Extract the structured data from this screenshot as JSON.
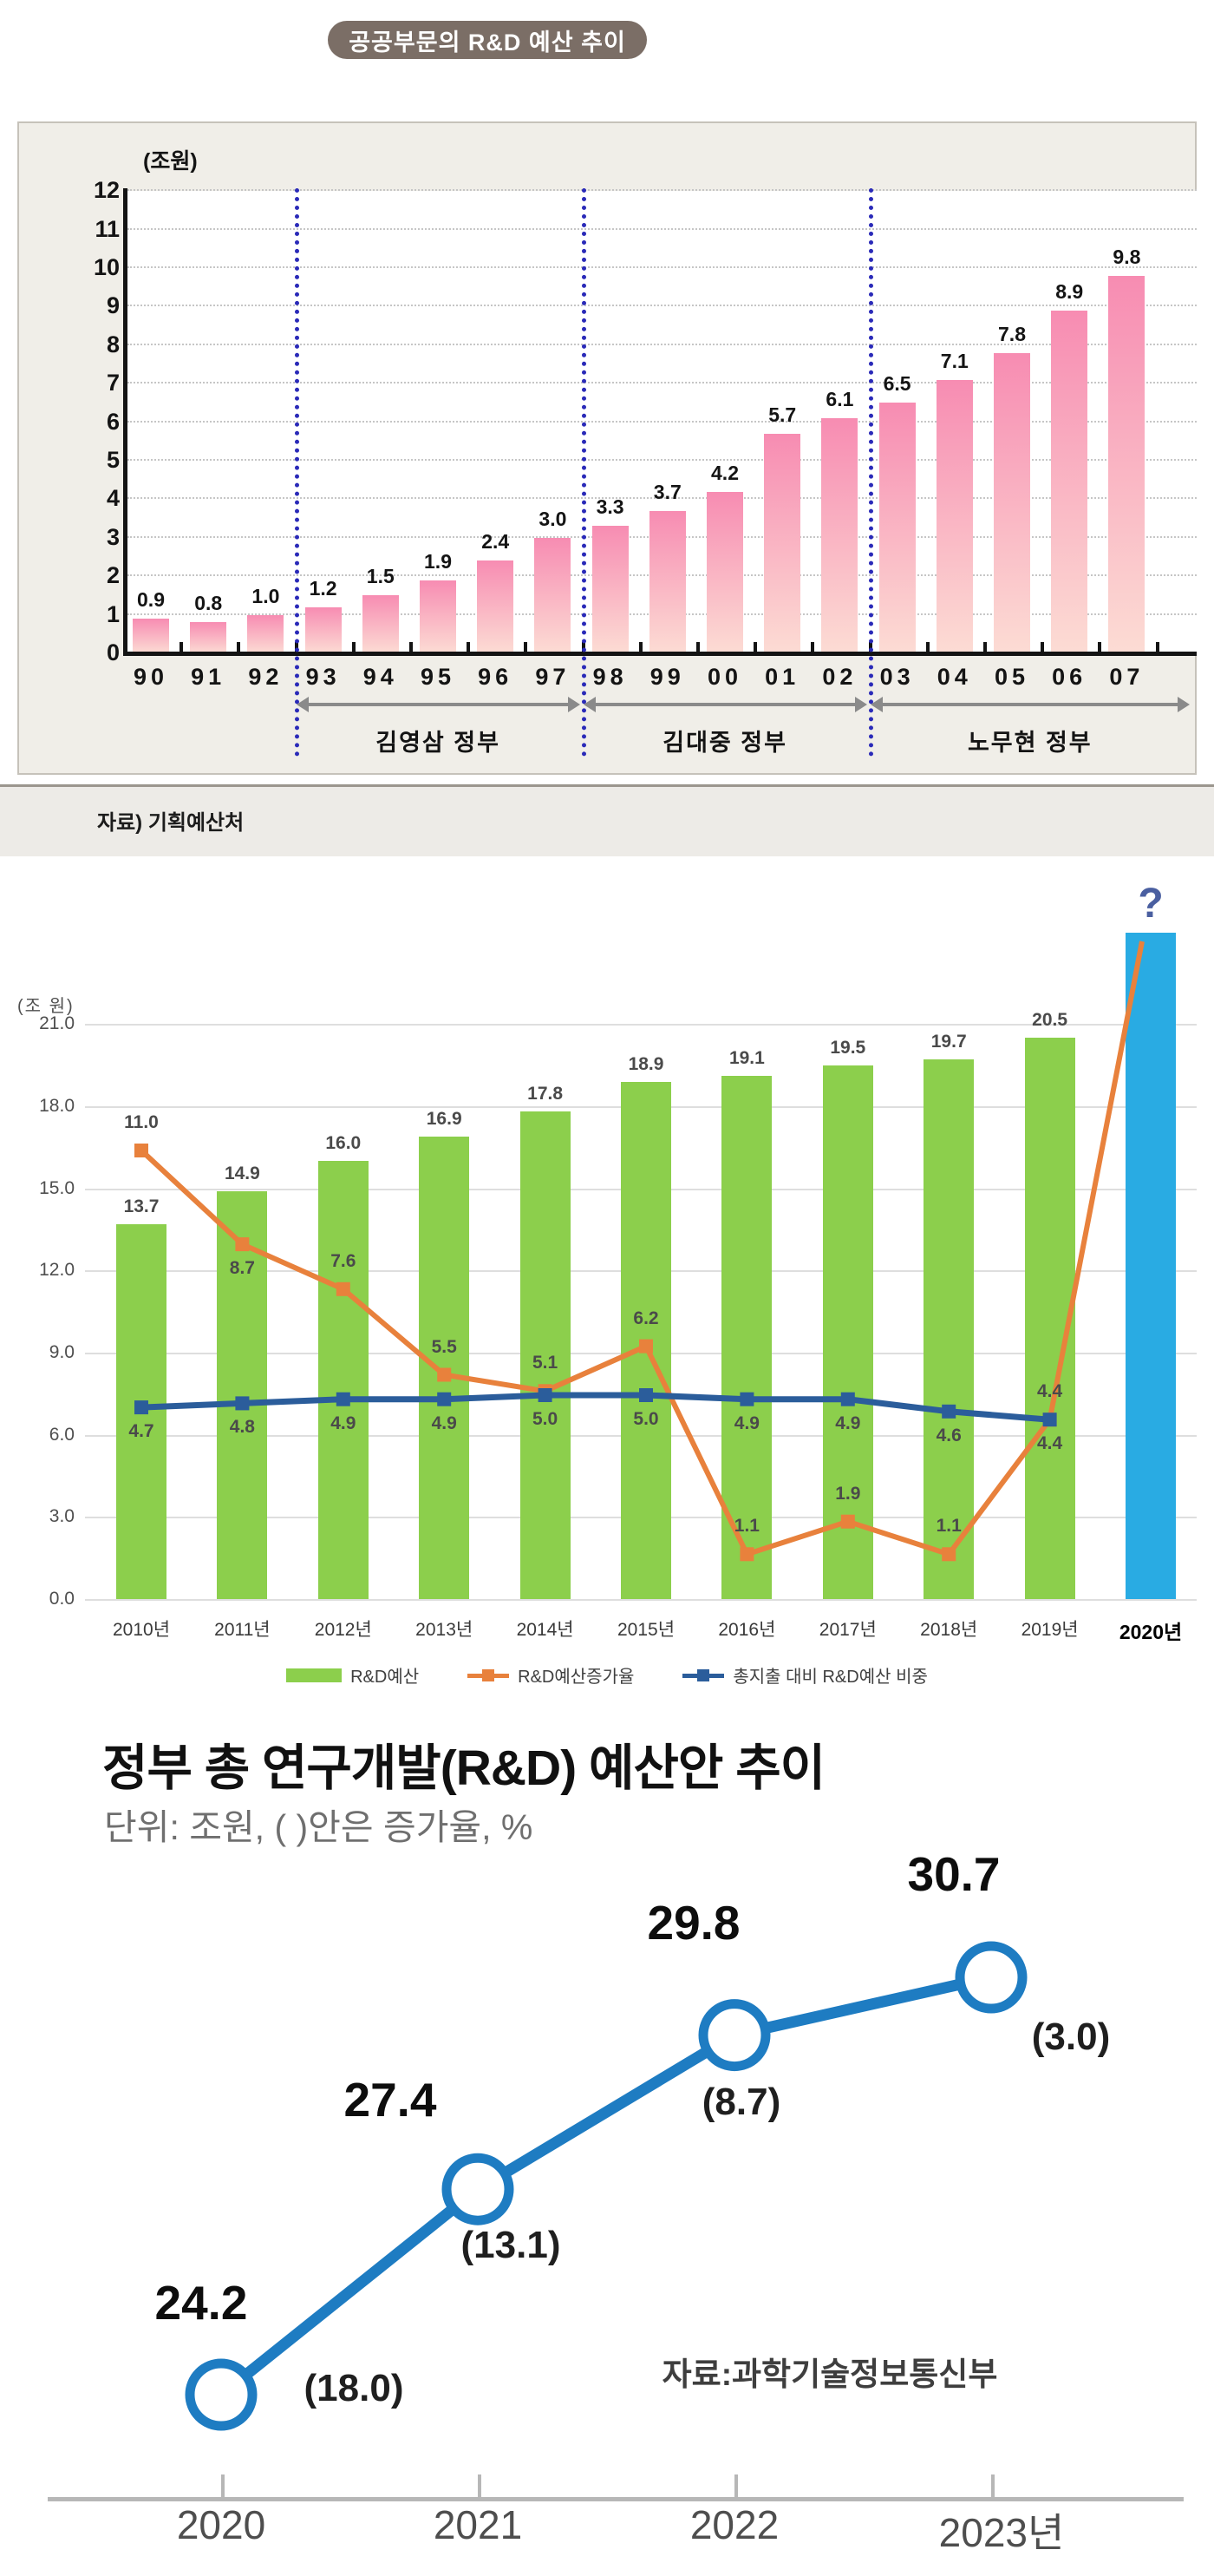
{
  "badge": {
    "label": "공공부문의 R&D 예산 추이",
    "bg": "#7b6e66"
  },
  "source_strip": {
    "label": "자료) 기획예산처"
  },
  "chart_data": [
    {
      "type": "bar",
      "title": "공공부문의 R&D 예산 추이",
      "unit_label": "(조원)",
      "categories": [
        "90",
        "91",
        "92",
        "93",
        "94",
        "95",
        "96",
        "97",
        "98",
        "99",
        "00",
        "01",
        "02",
        "03",
        "04",
        "05",
        "06",
        "07"
      ],
      "values": [
        0.9,
        0.8,
        1.0,
        1.2,
        1.5,
        1.9,
        2.4,
        3.0,
        3.3,
        3.7,
        4.2,
        5.7,
        6.1,
        6.5,
        7.1,
        7.8,
        8.9,
        9.8
      ],
      "ylim": [
        0,
        12
      ],
      "ytick_step": 1,
      "grid": "dotted-horizontal",
      "eras": [
        {
          "label": "김영삼 정부",
          "from": "93",
          "to": "97"
        },
        {
          "label": "김대중 정부",
          "from": "98",
          "to": "02"
        },
        {
          "label": "노무현 정부",
          "from": "03",
          "to": "07"
        }
      ],
      "colors": {
        "bar_top": "#f78cb2",
        "bar_bottom": "#fcdcd4",
        "divider": "#2a2ab8",
        "era_arrow": "#8a8a8a",
        "panel_bg": "#f0eee8"
      }
    },
    {
      "type": "bar+line",
      "unit_label": "(조 원)",
      "categories": [
        "2010년",
        "2011년",
        "2012년",
        "2013년",
        "2014년",
        "2015년",
        "2016년",
        "2017년",
        "2018년",
        "2019년",
        "2020년"
      ],
      "series": [
        {
          "name": "R&D예산",
          "kind": "bar",
          "color": "#8ccf4c",
          "values": [
            13.7,
            14.9,
            16.0,
            16.9,
            17.8,
            18.9,
            19.1,
            19.5,
            19.7,
            20.5,
            null
          ]
        },
        {
          "name": "R&D예산증가율",
          "kind": "line",
          "color": "#e8813c",
          "values": [
            11.0,
            8.7,
            7.6,
            5.5,
            5.1,
            6.2,
            1.1,
            1.9,
            1.1,
            4.4,
            null
          ],
          "label_side": [
            "above",
            "below",
            "above",
            "above",
            "above",
            "above",
            "above",
            "above",
            "above",
            "above"
          ]
        },
        {
          "name": "총지출 대비 R&D예산 비중",
          "kind": "line",
          "color": "#2b5d9b",
          "values": [
            4.7,
            4.8,
            4.9,
            4.9,
            5.0,
            5.0,
            4.9,
            4.9,
            4.6,
            4.4,
            null
          ],
          "label_side": [
            "below",
            "below",
            "below",
            "below",
            "below",
            "below",
            "below",
            "below",
            "below",
            "below"
          ]
        }
      ],
      "future_bar": {
        "category": "2020년",
        "label": "?",
        "color": "#29abe3"
      },
      "left_ticks": [
        21.0,
        18.0,
        15.0,
        12.0,
        9.0,
        6.0,
        3.0,
        0.0
      ],
      "ylim_bars": [
        0,
        21
      ],
      "legend": [
        "R&D예산",
        "R&D예산증가율",
        "총지출 대비 R&D예산 비중"
      ],
      "legend_colors": [
        "#8ccf4c",
        "#e8813c",
        "#2b5d9b"
      ]
    },
    {
      "type": "line",
      "title": "정부 총 연구개발(R&D) 예산안 추이",
      "subtitle": "단위: 조원, ( )안은 증가율, %",
      "categories": [
        "2020",
        "2021",
        "2022",
        "2023년"
      ],
      "values": [
        24.2,
        27.4,
        29.8,
        30.7
      ],
      "growth_labels": [
        "(18.0)",
        "(13.1)",
        "(8.7)",
        "(3.0)"
      ],
      "source": "자료:과학기술정보통신부",
      "colors": {
        "line": "#1e7cc2"
      }
    }
  ]
}
